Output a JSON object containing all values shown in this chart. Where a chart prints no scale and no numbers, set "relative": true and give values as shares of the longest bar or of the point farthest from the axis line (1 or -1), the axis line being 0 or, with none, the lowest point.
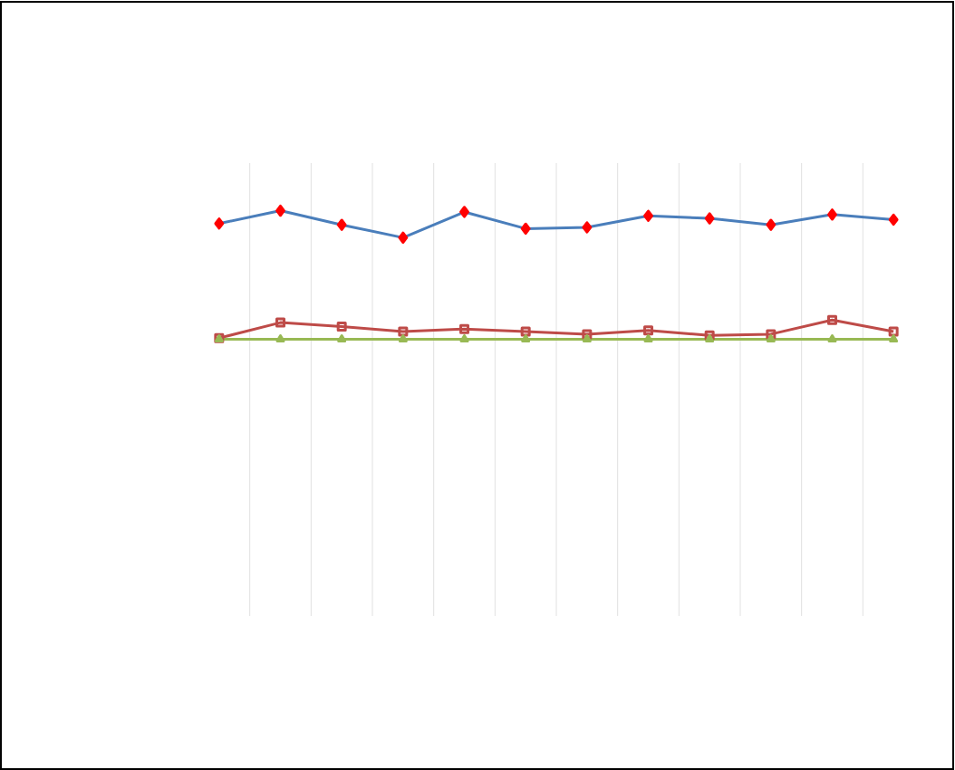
{
  "chart_data": {
    "type": "line",
    "relative": true,
    "grid": "x",
    "categories": [
      null,
      null,
      null,
      null,
      null,
      null,
      null,
      null,
      null,
      null,
      null,
      null
    ],
    "series": [
      {
        "color": "#4a7ebb",
        "marker": "diamond",
        "values": [
          0.9,
          1.0,
          0.89,
          0.79,
          0.99,
          0.86,
          0.87,
          0.96,
          0.94,
          0.89,
          0.97,
          0.93
        ]
      },
      {
        "color": "#be4b48",
        "marker": "square",
        "values": [
          0.01,
          0.13,
          0.1,
          0.06,
          0.08,
          0.06,
          0.04,
          0.07,
          0.03,
          0.04,
          0.15,
          0.06
        ]
      },
      {
        "color": "#98b954",
        "marker": "triangle",
        "values": [
          0,
          0,
          0,
          0,
          0,
          0,
          0,
          0,
          0,
          0,
          0,
          0
        ]
      }
    ]
  }
}
